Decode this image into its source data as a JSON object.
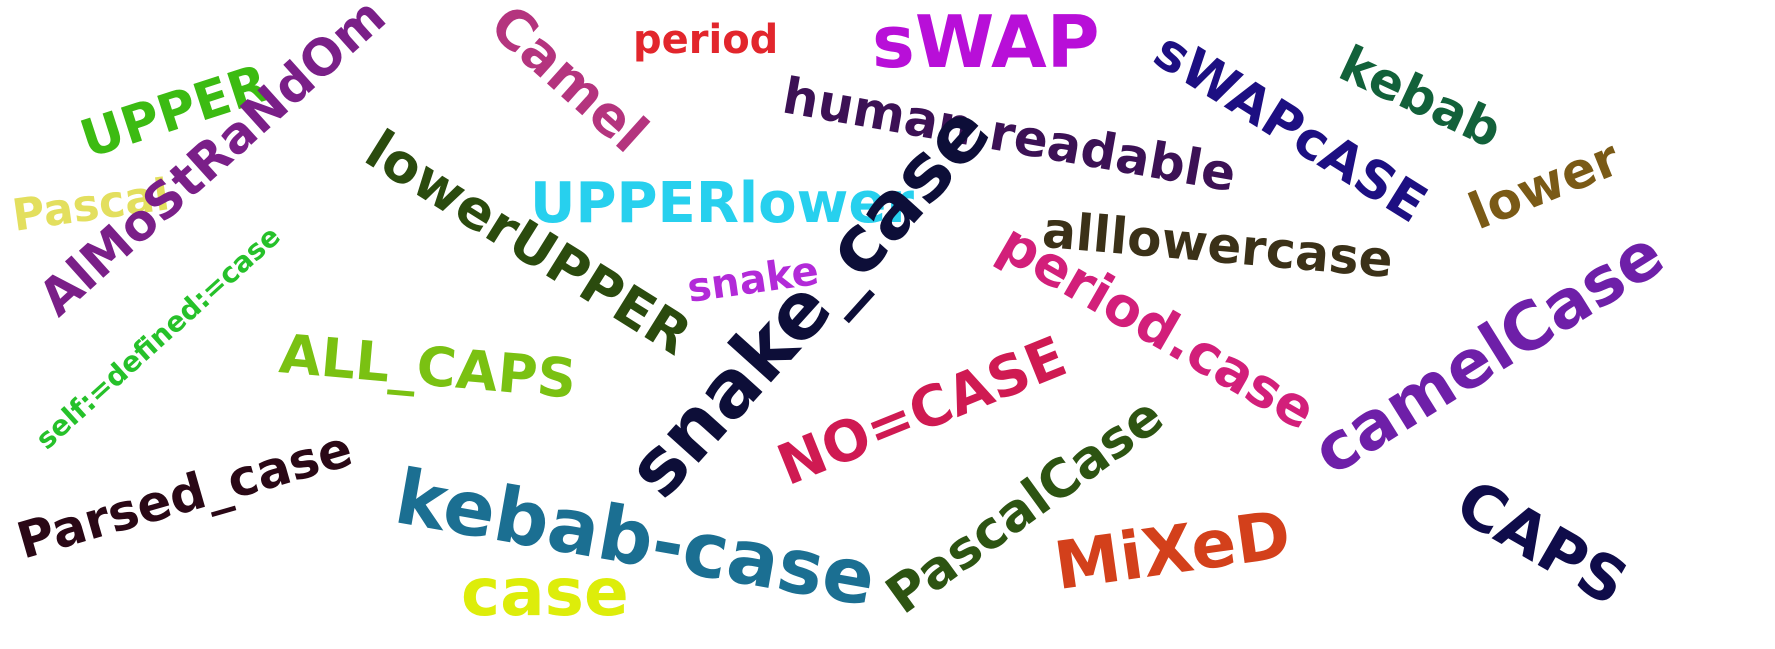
{
  "words": [
    {
      "text": "UPPER",
      "color": "#3cbb12"
    },
    {
      "text": "Pascal",
      "color": "#e3df5e"
    },
    {
      "text": "AlMoStRaNdOm",
      "color": "#7a1f88"
    },
    {
      "text": "Camel",
      "color": "#b4347e"
    },
    {
      "text": "period",
      "color": "#e2262c"
    },
    {
      "text": "sWAP",
      "color": "#b80fd8"
    },
    {
      "text": "human readable",
      "color": "#3c1155"
    },
    {
      "text": "sWAPcASE",
      "color": "#1d0f82"
    },
    {
      "text": "kebab",
      "color": "#12613a"
    },
    {
      "text": "lower",
      "color": "#7a5a16"
    },
    {
      "text": "lowerUPPER",
      "color": "#2b4b0e"
    },
    {
      "text": "UPPERlower",
      "color": "#27d0ee"
    },
    {
      "text": "snake_case",
      "color": "#0d0e38"
    },
    {
      "text": "alllowercase",
      "color": "#3b3118"
    },
    {
      "text": "snake",
      "color": "#b22ad8"
    },
    {
      "text": "self:=defined:=case",
      "color": "#26c12a"
    },
    {
      "text": "ALL_CAPS",
      "color": "#7ac112"
    },
    {
      "text": "period.case",
      "color": "#d21f7a"
    },
    {
      "text": "camelCase",
      "color": "#6e1fa8"
    },
    {
      "text": "NO=CASE",
      "color": "#cf1a52"
    },
    {
      "text": "Parsed_case",
      "color": "#2a0816"
    },
    {
      "text": "kebab-case",
      "color": "#1b6f92"
    },
    {
      "text": "PascalCase",
      "color": "#2d5412"
    },
    {
      "text": "MiXeD",
      "color": "#d3401b"
    },
    {
      "text": "CAPS",
      "color": "#0f0c4a"
    },
    {
      "text": "case",
      "color": "#dded0a"
    }
  ]
}
